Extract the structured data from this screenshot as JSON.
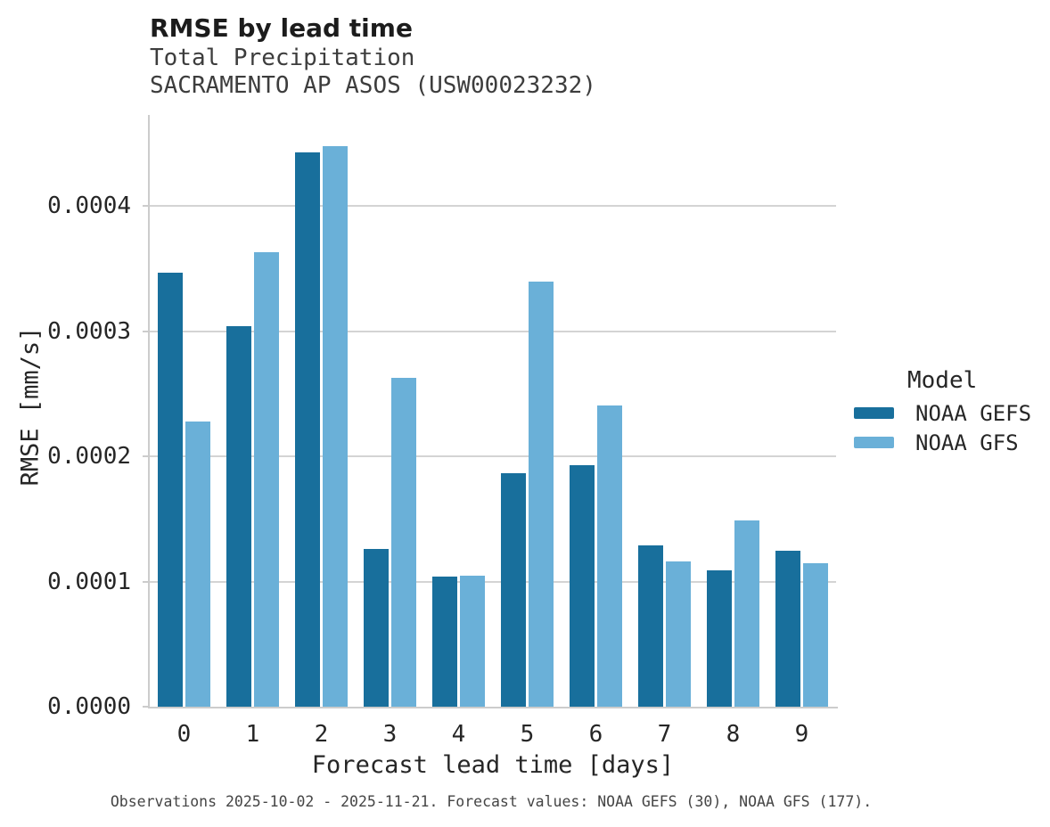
{
  "header": {
    "title": "RMSE by lead time",
    "subtitle_line1": "Total Precipitation",
    "subtitle_line2": "SACRAMENTO AP ASOS (USW00023232)"
  },
  "colors": {
    "gridline": "#d4d4d4",
    "spine": "#cccccc",
    "noaa_gefs": "#186f9c",
    "noaa_gfs": "#6ab0d8"
  },
  "chart_data": {
    "type": "bar",
    "title": "RMSE by lead time",
    "subtitle1": "Total Precipitation",
    "subtitle2": "SACRAMENTO AP ASOS (USW00023232)",
    "categories": [
      "0",
      "1",
      "2",
      "3",
      "4",
      "5",
      "6",
      "7",
      "8",
      "9"
    ],
    "series": [
      {
        "name": "NOAA GEFS",
        "color": "#186f9c",
        "values": [
          0.000347,
          0.000304,
          0.000443,
          0.000126,
          0.000104,
          0.000187,
          0.000193,
          0.000129,
          0.000109,
          0.000125
        ]
      },
      {
        "name": "NOAA GFS",
        "color": "#6ab0d8",
        "values": [
          0.000228,
          0.000363,
          0.000448,
          0.000263,
          0.000105,
          0.00034,
          0.000241,
          0.000116,
          0.000149,
          0.000115
        ]
      }
    ],
    "xlabel": "Forecast lead time [days]",
    "ylabel": "RMSE [mm/s]",
    "ylim": [
      0,
      0.000473
    ],
    "yticks": [
      0,
      0.0001,
      0.0002,
      0.0003,
      0.0004
    ],
    "ytick_labels": [
      "0.0000",
      "0.0001",
      "0.0002",
      "0.0003",
      "0.0004"
    ],
    "grid": "horizontal",
    "legend_title": "Model",
    "legend_position": "right",
    "caption": "Observations 2025-10-02 - 2025-11-21. Forecast values: NOAA GEFS (30), NOAA GFS (177)."
  }
}
